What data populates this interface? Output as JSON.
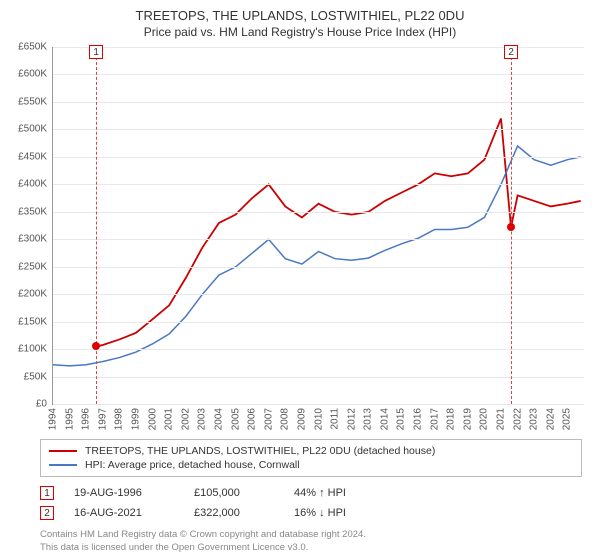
{
  "title": "TREETOPS, THE UPLANDS, LOSTWITHIEL, PL22 0DU",
  "subtitle": "Price paid vs. HM Land Registry's House Price Index (HPI)",
  "chart": {
    "type": "line",
    "background_color": "#ffffff",
    "grid_color": "#e8e8e8",
    "axis_color": "#999999",
    "label_color": "#555555",
    "label_fontsize": 10,
    "ylim": [
      0,
      650000
    ],
    "ytick_step": 50000,
    "ylabels": [
      "£0",
      "£50K",
      "£100K",
      "£150K",
      "£200K",
      "£250K",
      "£300K",
      "£350K",
      "£400K",
      "£450K",
      "£500K",
      "£550K",
      "£600K",
      "£650K"
    ],
    "xlim": [
      1994,
      2026
    ],
    "xlabels": [
      "1994",
      "1995",
      "1996",
      "1997",
      "1998",
      "1999",
      "2000",
      "2001",
      "2002",
      "2003",
      "2004",
      "2005",
      "2006",
      "2007",
      "2008",
      "2009",
      "2010",
      "2011",
      "2012",
      "2013",
      "2014",
      "2015",
      "2016",
      "2017",
      "2018",
      "2019",
      "2020",
      "2021",
      "2022",
      "2023",
      "2024",
      "2025"
    ],
    "series": [
      {
        "name": "TREETOPS, THE UPLANDS, LOSTWITHIEL, PL22 0DU (detached house)",
        "color": "#cc0000",
        "line_width": 1.8,
        "points": [
          [
            1996.6,
            105000
          ],
          [
            1997,
            108000
          ],
          [
            1998,
            118000
          ],
          [
            1999,
            130000
          ],
          [
            2000,
            155000
          ],
          [
            2001,
            180000
          ],
          [
            2002,
            230000
          ],
          [
            2003,
            285000
          ],
          [
            2004,
            330000
          ],
          [
            2005,
            345000
          ],
          [
            2006,
            375000
          ],
          [
            2007,
            400000
          ],
          [
            2008,
            360000
          ],
          [
            2009,
            340000
          ],
          [
            2010,
            365000
          ],
          [
            2011,
            350000
          ],
          [
            2012,
            345000
          ],
          [
            2013,
            350000
          ],
          [
            2014,
            370000
          ],
          [
            2015,
            385000
          ],
          [
            2016,
            400000
          ],
          [
            2017,
            420000
          ],
          [
            2018,
            415000
          ],
          [
            2019,
            420000
          ],
          [
            2020,
            445000
          ],
          [
            2021,
            520000
          ],
          [
            2021.6,
            322000
          ],
          [
            2022,
            380000
          ],
          [
            2023,
            370000
          ],
          [
            2024,
            360000
          ],
          [
            2025,
            365000
          ],
          [
            2025.8,
            370000
          ]
        ]
      },
      {
        "name": "HPI: Average price, detached house, Cornwall",
        "color": "#4a78c4",
        "line_width": 1.5,
        "points": [
          [
            1994,
            72000
          ],
          [
            1995,
            70000
          ],
          [
            1996,
            72000
          ],
          [
            1997,
            78000
          ],
          [
            1998,
            85000
          ],
          [
            1999,
            95000
          ],
          [
            2000,
            110000
          ],
          [
            2001,
            128000
          ],
          [
            2002,
            160000
          ],
          [
            2003,
            200000
          ],
          [
            2004,
            235000
          ],
          [
            2005,
            250000
          ],
          [
            2006,
            275000
          ],
          [
            2007,
            300000
          ],
          [
            2008,
            265000
          ],
          [
            2009,
            255000
          ],
          [
            2010,
            278000
          ],
          [
            2011,
            265000
          ],
          [
            2012,
            262000
          ],
          [
            2013,
            266000
          ],
          [
            2014,
            280000
          ],
          [
            2015,
            292000
          ],
          [
            2016,
            302000
          ],
          [
            2017,
            318000
          ],
          [
            2018,
            318000
          ],
          [
            2019,
            322000
          ],
          [
            2020,
            340000
          ],
          [
            2021,
            400000
          ],
          [
            2022,
            470000
          ],
          [
            2023,
            445000
          ],
          [
            2024,
            435000
          ],
          [
            2025,
            445000
          ],
          [
            2025.8,
            450000
          ]
        ]
      }
    ],
    "markers": [
      {
        "n": "1",
        "x": 1996.6,
        "dot_y": 105000
      },
      {
        "n": "2",
        "x": 2021.6,
        "dot_y": 322000
      }
    ]
  },
  "legend": {
    "items": [
      {
        "color": "#cc0000",
        "label": "TREETOPS, THE UPLANDS, LOSTWITHIEL, PL22 0DU (detached house)"
      },
      {
        "color": "#4a78c4",
        "label": "HPI: Average price, detached house, Cornwall"
      }
    ]
  },
  "data_rows": [
    {
      "n": "1",
      "date": "19-AUG-1996",
      "price": "£105,000",
      "delta": "44% ↑ HPI"
    },
    {
      "n": "2",
      "date": "16-AUG-2021",
      "price": "£322,000",
      "delta": "16% ↓ HPI"
    }
  ],
  "footer": {
    "line1": "Contains HM Land Registry data © Crown copyright and database right 2024.",
    "line2": "This data is licensed under the Open Government Licence v3.0."
  }
}
